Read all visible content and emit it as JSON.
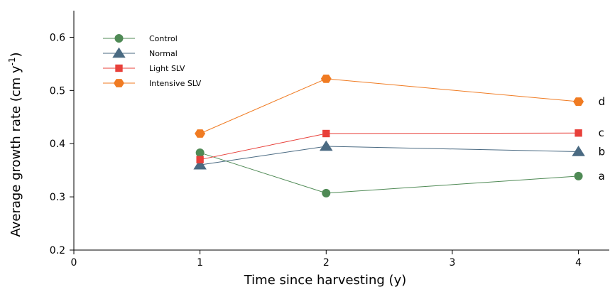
{
  "chart_data": {
    "type": "line",
    "title": "",
    "xlabel": "Time since harvesting (y)",
    "ylabel": "Average growth rate (cm y",
    "ylabel_superscript": "-1",
    "ylabel_suffix": ")",
    "xlim": [
      0,
      4.25
    ],
    "ylim": [
      0.2,
      0.65
    ],
    "x_ticks": [
      0,
      1,
      2,
      3,
      4
    ],
    "y_ticks": [
      0.2,
      0.3,
      0.4,
      0.5,
      0.6
    ],
    "x_tick_labels": [
      "0",
      "1",
      "2",
      "3",
      "4"
    ],
    "y_tick_labels": [
      "0.2",
      "0.3",
      "0.4",
      "0.5",
      "0.6"
    ],
    "grid": false,
    "legend_position": "top-left",
    "series": [
      {
        "name": "Control",
        "color": "#4f8a55",
        "marker": "circle",
        "x": [
          1,
          2,
          4
        ],
        "y": [
          0.383,
          0.307,
          0.339
        ],
        "end_label": "a"
      },
      {
        "name": "Normal",
        "color": "#4a6a82",
        "marker": "triangle",
        "x": [
          1,
          2,
          4
        ],
        "y": [
          0.36,
          0.395,
          0.385
        ],
        "end_label": "b"
      },
      {
        "name": "Light SLV",
        "color": "#e8403a",
        "marker": "square",
        "x": [
          1,
          2,
          4
        ],
        "y": [
          0.37,
          0.419,
          0.42
        ],
        "end_label": "c"
      },
      {
        "name": "Intensive SLV",
        "color": "#f07b22",
        "marker": "hexagon",
        "x": [
          1,
          2,
          4
        ],
        "y": [
          0.419,
          0.522,
          0.479
        ],
        "end_label": "d"
      }
    ]
  }
}
